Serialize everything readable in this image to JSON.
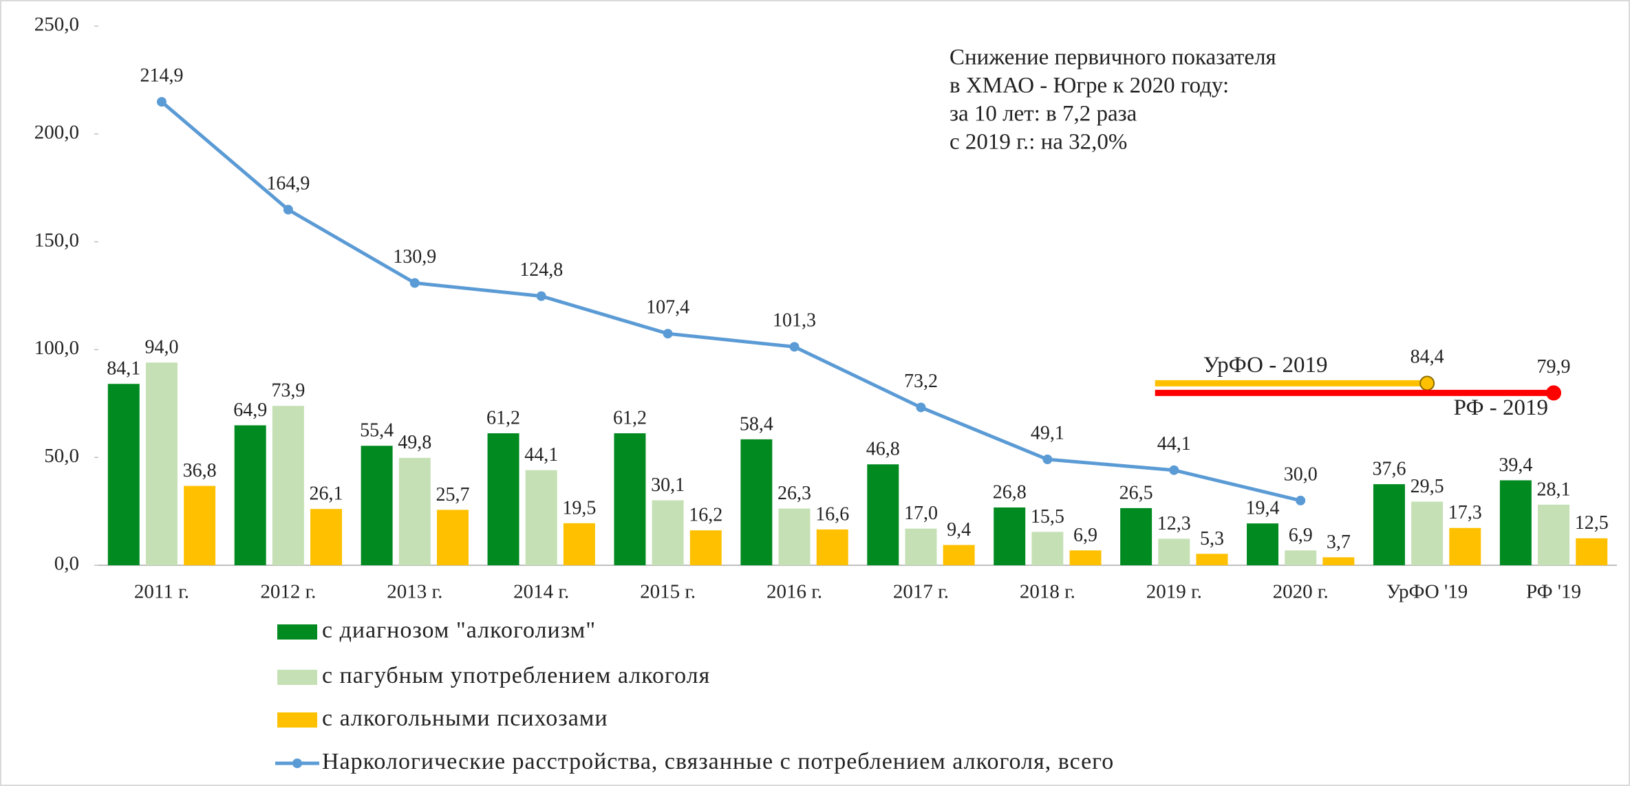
{
  "chart_data": {
    "type": "bar",
    "categories": [
      "2011 г.",
      "2012 г.",
      "2013 г.",
      "2014 г.",
      "2015 г.",
      "2016 г.",
      "2017 г.",
      "2018 г.",
      "2019 г.",
      "2020 г.",
      "УрФО '19",
      "РФ '19"
    ],
    "series": [
      {
        "name": "с диагнозом \"алкоголизм\"",
        "type": "bar",
        "color": "#008a1f",
        "values": [
          84.1,
          64.9,
          55.4,
          61.2,
          61.2,
          58.4,
          46.8,
          26.8,
          26.5,
          19.4,
          37.6,
          39.4
        ],
        "value_labels": [
          "84,1",
          "64,9",
          "55,4",
          "61,2",
          "61,2",
          "58,4",
          "46,8",
          "26,8",
          "26,5",
          "19,4",
          "37,6",
          "39,4"
        ]
      },
      {
        "name": "с пагубным употреблением алкоголя",
        "type": "bar",
        "color": "#c5e0b4",
        "values": [
          94.0,
          73.9,
          49.8,
          44.1,
          30.1,
          26.3,
          17.0,
          15.5,
          12.3,
          6.9,
          29.5,
          28.1
        ],
        "value_labels": [
          "94,0",
          "73,9",
          "49,8",
          "44,1",
          "30,1",
          "26,3",
          "17,0",
          "15,5",
          "12,3",
          "6,9",
          "29,5",
          "28,1"
        ]
      },
      {
        "name": "с алкогольными психозами",
        "type": "bar",
        "color": "#ffc000",
        "values": [
          36.8,
          26.1,
          25.7,
          19.5,
          16.2,
          16.6,
          9.4,
          6.9,
          5.3,
          3.7,
          17.3,
          12.5
        ],
        "value_labels": [
          "36,8",
          "26,1",
          "25,7",
          "19,5",
          "16,2",
          "16,6",
          "9,4",
          "6,9",
          "5,3",
          "3,7",
          "17,3",
          "12,5"
        ]
      },
      {
        "name": "Наркологические расстройства, связанные с потреблением алкоголя, всего",
        "type": "line",
        "color": "#5b9bd5",
        "values": [
          214.9,
          164.9,
          130.9,
          124.8,
          107.4,
          101.3,
          73.2,
          49.1,
          44.1,
          30.0,
          null,
          null
        ],
        "value_labels": [
          "214,9",
          "164,9",
          "130,9",
          "124,8",
          "107,4",
          "101,3",
          "73,2",
          "49,1",
          "44,1",
          "30,0",
          null,
          null
        ]
      }
    ],
    "reference_lines": [
      {
        "label": "УрФО - 2019",
        "value": 84.4,
        "value_label": "84,4",
        "color": "#ffc000"
      },
      {
        "label": "РФ - 2019",
        "value": 79.9,
        "value_label": "79,9",
        "color": "#ff0000"
      }
    ],
    "annotation": [
      "Снижение первичного показателя",
      "в ХМАО - Югре к 2020 году:",
      "за 10 лет: в 7,2 раза",
      "с 2019 г.: на 32,0%"
    ],
    "ylim": [
      0,
      250
    ],
    "yticks": [
      {
        "value": 0,
        "label": "0,0"
      },
      {
        "value": 50,
        "label": "50,0"
      },
      {
        "value": 100,
        "label": "100,0"
      },
      {
        "value": 150,
        "label": "150,0"
      },
      {
        "value": 200,
        "label": "200,0"
      },
      {
        "value": 250,
        "label": "250,0"
      }
    ],
    "legend": "bottom"
  }
}
